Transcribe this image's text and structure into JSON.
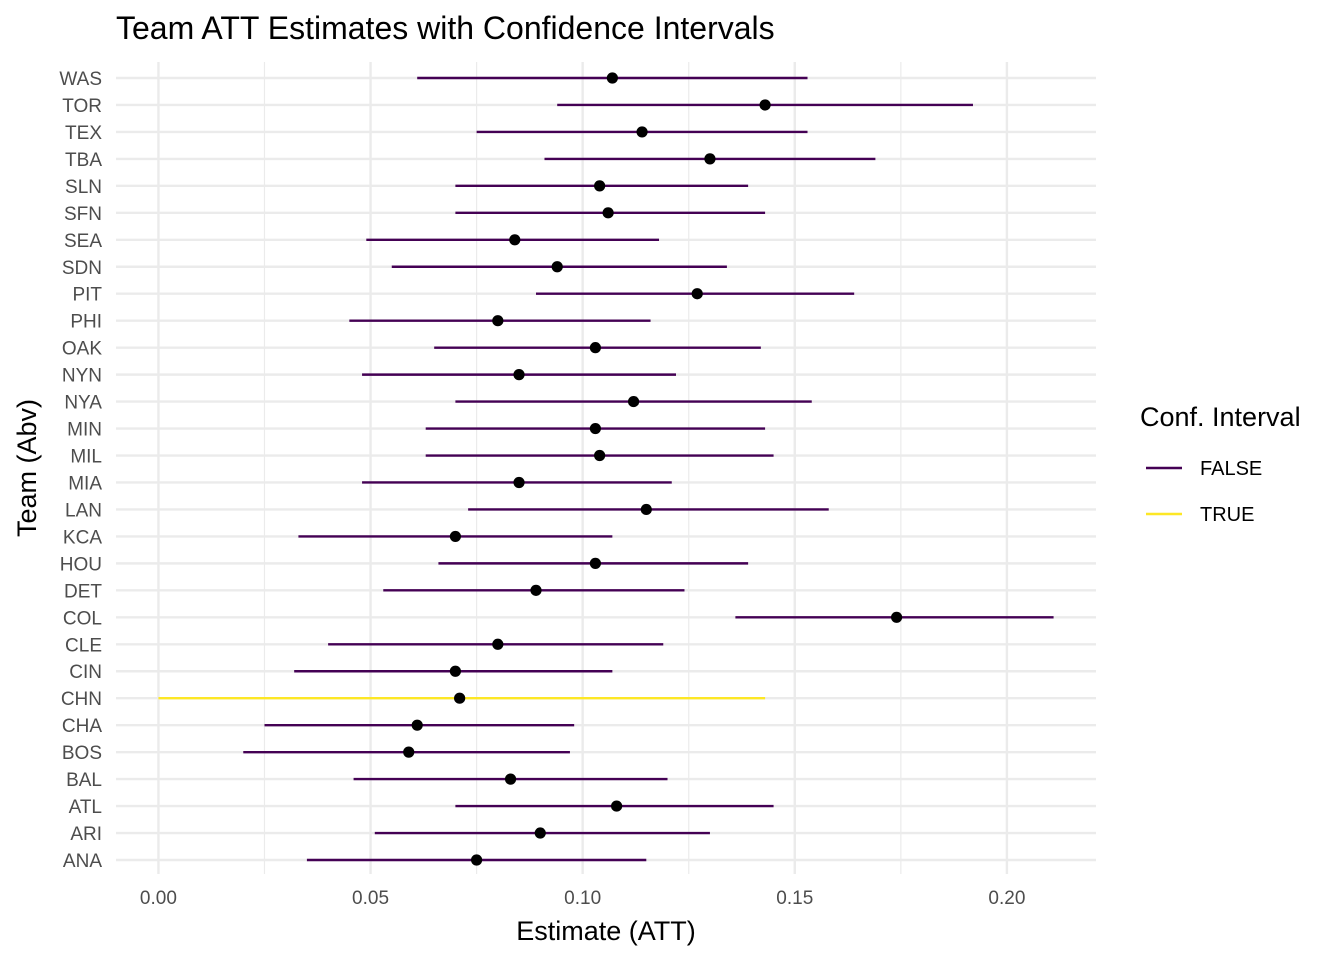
{
  "chart_data": {
    "type": "scatter",
    "title": "Team ATT Estimates with Confidence Intervals",
    "xlabel": "Estimate (ATT)",
    "ylabel": "Team (Abv)",
    "xlim": [
      -0.01,
      0.221
    ],
    "x_ticks": [
      "0.00",
      "0.05",
      "0.10",
      "0.15",
      "0.20"
    ],
    "x_tick_values": [
      0.0,
      0.05,
      0.1,
      0.15,
      0.2
    ],
    "grid": true,
    "legend": {
      "title": "Conf. Interval",
      "placement": "right",
      "entries": [
        {
          "label": "FALSE",
          "color": "#440154"
        },
        {
          "label": "TRUE",
          "color": "#FDE725"
        }
      ]
    },
    "point_color": "#000000",
    "teams": [
      {
        "team": "ANA",
        "estimate": 0.075,
        "lower": 0.035,
        "upper": 0.115,
        "ci": "FALSE"
      },
      {
        "team": "ARI",
        "estimate": 0.09,
        "lower": 0.051,
        "upper": 0.13,
        "ci": "FALSE"
      },
      {
        "team": "ATL",
        "estimate": 0.108,
        "lower": 0.07,
        "upper": 0.145,
        "ci": "FALSE"
      },
      {
        "team": "BAL",
        "estimate": 0.083,
        "lower": 0.046,
        "upper": 0.12,
        "ci": "FALSE"
      },
      {
        "team": "BOS",
        "estimate": 0.059,
        "lower": 0.02,
        "upper": 0.097,
        "ci": "FALSE"
      },
      {
        "team": "CHA",
        "estimate": 0.061,
        "lower": 0.025,
        "upper": 0.098,
        "ci": "FALSE"
      },
      {
        "team": "CHN",
        "estimate": 0.071,
        "lower": 0.0,
        "upper": 0.143,
        "ci": "TRUE"
      },
      {
        "team": "CIN",
        "estimate": 0.07,
        "lower": 0.032,
        "upper": 0.107,
        "ci": "FALSE"
      },
      {
        "team": "CLE",
        "estimate": 0.08,
        "lower": 0.04,
        "upper": 0.119,
        "ci": "FALSE"
      },
      {
        "team": "COL",
        "estimate": 0.174,
        "lower": 0.136,
        "upper": 0.211,
        "ci": "FALSE"
      },
      {
        "team": "DET",
        "estimate": 0.089,
        "lower": 0.053,
        "upper": 0.124,
        "ci": "FALSE"
      },
      {
        "team": "HOU",
        "estimate": 0.103,
        "lower": 0.066,
        "upper": 0.139,
        "ci": "FALSE"
      },
      {
        "team": "KCA",
        "estimate": 0.07,
        "lower": 0.033,
        "upper": 0.107,
        "ci": "FALSE"
      },
      {
        "team": "LAN",
        "estimate": 0.115,
        "lower": 0.073,
        "upper": 0.158,
        "ci": "FALSE"
      },
      {
        "team": "MIA",
        "estimate": 0.085,
        "lower": 0.048,
        "upper": 0.121,
        "ci": "FALSE"
      },
      {
        "team": "MIL",
        "estimate": 0.104,
        "lower": 0.063,
        "upper": 0.145,
        "ci": "FALSE"
      },
      {
        "team": "MIN",
        "estimate": 0.103,
        "lower": 0.063,
        "upper": 0.143,
        "ci": "FALSE"
      },
      {
        "team": "NYA",
        "estimate": 0.112,
        "lower": 0.07,
        "upper": 0.154,
        "ci": "FALSE"
      },
      {
        "team": "NYN",
        "estimate": 0.085,
        "lower": 0.048,
        "upper": 0.122,
        "ci": "FALSE"
      },
      {
        "team": "OAK",
        "estimate": 0.103,
        "lower": 0.065,
        "upper": 0.142,
        "ci": "FALSE"
      },
      {
        "team": "PHI",
        "estimate": 0.08,
        "lower": 0.045,
        "upper": 0.116,
        "ci": "FALSE"
      },
      {
        "team": "PIT",
        "estimate": 0.127,
        "lower": 0.089,
        "upper": 0.164,
        "ci": "FALSE"
      },
      {
        "team": "SDN",
        "estimate": 0.094,
        "lower": 0.055,
        "upper": 0.134,
        "ci": "FALSE"
      },
      {
        "team": "SEA",
        "estimate": 0.084,
        "lower": 0.049,
        "upper": 0.118,
        "ci": "FALSE"
      },
      {
        "team": "SFN",
        "estimate": 0.106,
        "lower": 0.07,
        "upper": 0.143,
        "ci": "FALSE"
      },
      {
        "team": "SLN",
        "estimate": 0.104,
        "lower": 0.07,
        "upper": 0.139,
        "ci": "FALSE"
      },
      {
        "team": "TBA",
        "estimate": 0.13,
        "lower": 0.091,
        "upper": 0.169,
        "ci": "FALSE"
      },
      {
        "team": "TEX",
        "estimate": 0.114,
        "lower": 0.075,
        "upper": 0.153,
        "ci": "FALSE"
      },
      {
        "team": "TOR",
        "estimate": 0.143,
        "lower": 0.094,
        "upper": 0.192,
        "ci": "FALSE"
      },
      {
        "team": "WAS",
        "estimate": 0.107,
        "lower": 0.061,
        "upper": 0.153,
        "ci": "FALSE"
      }
    ]
  }
}
